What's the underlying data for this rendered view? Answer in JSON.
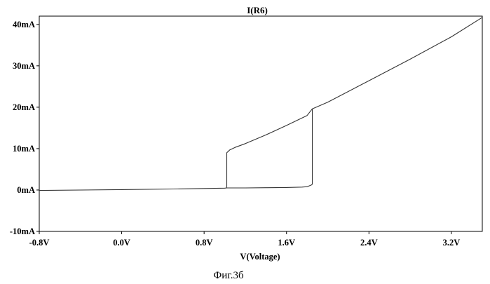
{
  "chart_data": {
    "type": "line",
    "title": "I(R6)",
    "xlabel": "V(Voltage)",
    "ylabel": "",
    "xlim": [
      -0.8,
      3.5
    ],
    "ylim": [
      -10,
      42
    ],
    "x_ticks": [
      -0.8,
      0.0,
      0.8,
      1.6,
      2.4,
      3.2
    ],
    "x_tick_labels": [
      "-0.8V",
      "0.0V",
      "0.8V",
      "1.6V",
      "2.4V",
      "3.2V"
    ],
    "y_ticks": [
      -10,
      0,
      10,
      20,
      30,
      40
    ],
    "y_tick_labels": [
      "-10mA",
      "0mA",
      "10mA",
      "20mA",
      "30mA",
      "40mA"
    ],
    "grid": false,
    "legend": "none",
    "series": [
      {
        "x": [
          -0.8,
          0.0,
          0.5,
          0.9,
          1.0,
          1.02,
          1.02,
          1.05,
          1.1,
          1.2,
          1.4,
          1.6,
          1.8,
          1.85,
          2.0,
          2.4,
          2.8,
          3.2,
          3.5
        ],
        "y": [
          -0.1,
          0.1,
          0.25,
          0.4,
          0.45,
          0.5,
          9.0,
          9.7,
          10.3,
          11.2,
          13.3,
          15.6,
          18.0,
          19.6,
          21.2,
          26.4,
          31.6,
          37.0,
          41.7
        ]
      },
      {
        "x": [
          1.02,
          1.2,
          1.4,
          1.6,
          1.75,
          1.8,
          1.84,
          1.85,
          1.85
        ],
        "y": [
          0.5,
          0.5,
          0.55,
          0.6,
          0.7,
          0.8,
          1.2,
          1.4,
          19.6
        ]
      }
    ],
    "line_color": "#333333",
    "axis_color": "#000000"
  },
  "caption": "Фиг.3б"
}
